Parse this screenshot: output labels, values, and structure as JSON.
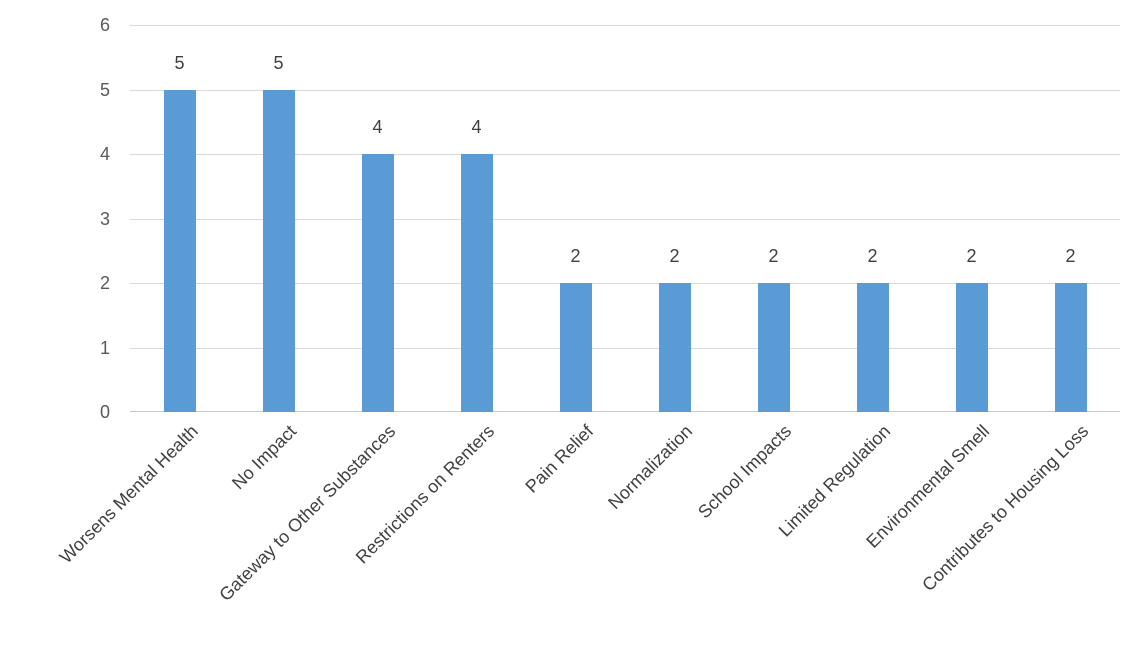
{
  "chart_data": {
    "type": "bar",
    "title": "",
    "xlabel": "",
    "ylabel": "",
    "categories": [
      "Worsens Mental Health",
      "No Impact",
      "Gateway to Other Substances",
      "Restrictions on Renters",
      "Pain Relief",
      "Normalization",
      "School Impacts",
      "Limited Regulation",
      "Environmental Smell",
      "Contributes to Housing Loss"
    ],
    "values": [
      5,
      5,
      4,
      4,
      2,
      2,
      2,
      2,
      2,
      2
    ],
    "data_labels": [
      5,
      5,
      4,
      4,
      2,
      2,
      2,
      2,
      2,
      2
    ],
    "ylim": [
      0,
      6
    ],
    "y_ticks": [
      0,
      1,
      2,
      3,
      4,
      5,
      6
    ],
    "grid": true,
    "legend": false,
    "category_label_rotation_deg": 45,
    "colors": {
      "bar": "#5b9bd5",
      "gridline": "#d9d9d9",
      "axis_line": "#c9c9c9",
      "tick_text": "#595959",
      "label_text": "#404040",
      "background": "#ffffff"
    }
  }
}
